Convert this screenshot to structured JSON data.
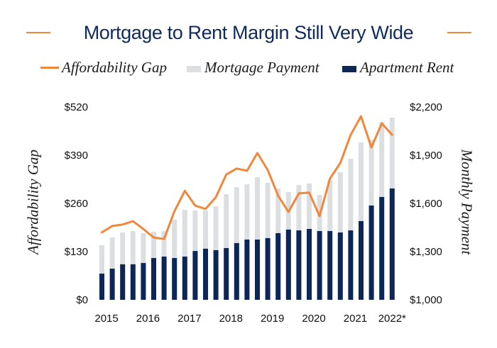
{
  "colors": {
    "title": "#0f2a5c",
    "gap_line": "#f0873a",
    "mortgage": "#dcdfe1",
    "rent": "#0b2657",
    "text": "#111111"
  },
  "chart_data": {
    "type": "bar",
    "title": "Mortgage to Rent Margin Still Very Wide",
    "legend": {
      "placement": "top-center",
      "entries": [
        {
          "key": "gap",
          "label": "Affordability Gap",
          "marker": "line"
        },
        {
          "key": "mortgage",
          "label": "Mortgage Payment",
          "marker": "box"
        },
        {
          "key": "rent",
          "label": "Apartment Rent",
          "marker": "box"
        }
      ]
    },
    "x": {
      "label": "",
      "tick_labels": [
        "2015",
        "2016",
        "2017",
        "2018",
        "2019",
        "2020",
        "2021",
        "2022*"
      ],
      "periods": [
        "2015 Q1",
        "2015 Q2",
        "2015 Q3",
        "2015 Q4",
        "2016 Q1",
        "2016 Q2",
        "2016 Q3",
        "2016 Q4",
        "2017 Q1",
        "2017 Q2",
        "2017 Q3",
        "2017 Q4",
        "2018 Q1",
        "2018 Q2",
        "2018 Q3",
        "2018 Q4",
        "2019 Q1",
        "2019 Q2",
        "2019 Q3",
        "2019 Q4",
        "2020 Q1",
        "2020 Q2",
        "2020 Q3",
        "2020 Q4",
        "2021 Q1",
        "2021 Q2",
        "2021 Q3",
        "2021 Q4",
        "2022 Q1"
      ]
    },
    "y_left": {
      "label": "Affordability Gap",
      "range": [
        0,
        520
      ],
      "tick_values": [
        0,
        130,
        260,
        390,
        520
      ],
      "tick_labels": [
        "$0",
        "$130",
        "$260",
        "$390",
        "$520"
      ]
    },
    "y_right": {
      "label": "Monthly Payment",
      "range": [
        1000,
        2200
      ],
      "tick_values": [
        1000,
        1300,
        1600,
        1900,
        2200
      ],
      "tick_labels": [
        "$1,000",
        "$1,300",
        "$1,600",
        "$1,900",
        "$2,200"
      ]
    },
    "grid": false,
    "series": [
      {
        "name": "Affordability Gap",
        "type": "line",
        "axis": "left",
        "values": [
          182,
          199,
          203,
          212,
          191,
          168,
          164,
          239,
          294,
          254,
          245,
          277,
          338,
          354,
          348,
          396,
          350,
          281,
          237,
          287,
          289,
          226,
          327,
          369,
          445,
          495,
          411,
          476,
          445
        ]
      },
      {
        "name": "Mortgage Payment",
        "type": "bar",
        "axis": "right",
        "values": [
          1340,
          1388,
          1419,
          1428,
          1415,
          1424,
          1428,
          1499,
          1560,
          1556,
          1556,
          1582,
          1657,
          1701,
          1719,
          1763,
          1728,
          1693,
          1671,
          1715,
          1724,
          1653,
          1746,
          1794,
          1878,
          1979,
          1997,
          2107,
          2134
        ]
      },
      {
        "name": "Apartment Rent",
        "type": "bar",
        "axis": "right",
        "values": [
          1163,
          1194,
          1221,
          1221,
          1229,
          1260,
          1269,
          1260,
          1269,
          1304,
          1318,
          1309,
          1322,
          1353,
          1375,
          1375,
          1384,
          1415,
          1437,
          1432,
          1441,
          1428,
          1428,
          1419,
          1432,
          1490,
          1587,
          1640,
          1693
        ]
      }
    ]
  }
}
